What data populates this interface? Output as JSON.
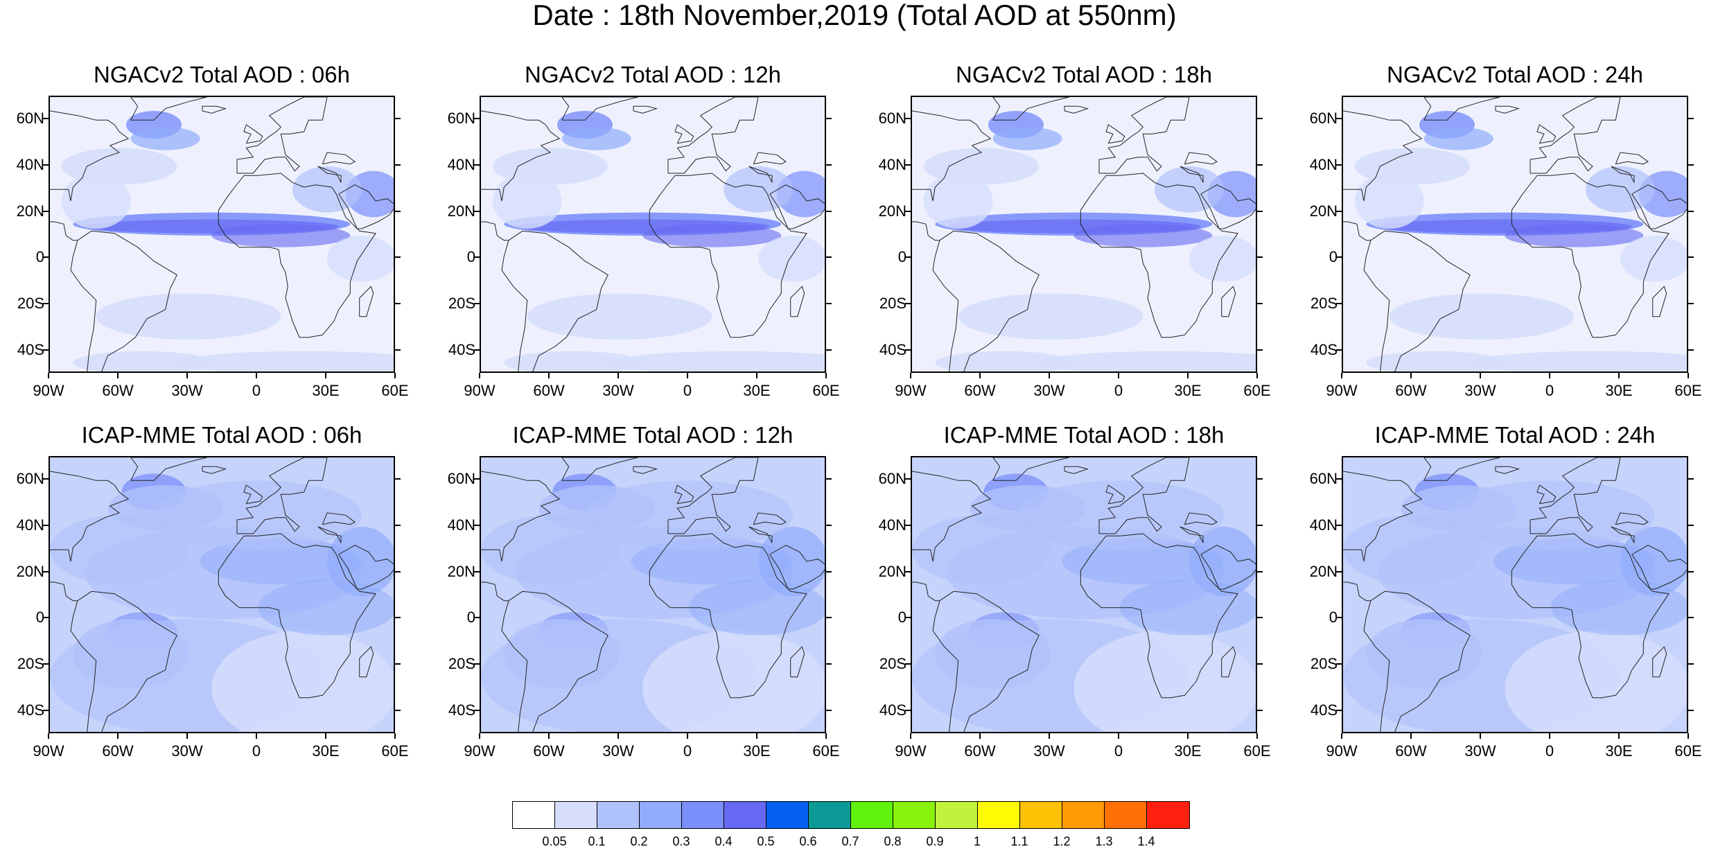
{
  "title": "Date : 18th November,2019 (Total AOD at 550nm)",
  "lat_labels": [
    "60N",
    "40N",
    "20N",
    "0",
    "20S",
    "40S"
  ],
  "lon_labels": [
    "90W",
    "60W",
    "30W",
    "0",
    "30E",
    "60E"
  ],
  "panels": [
    {
      "title": "NGACv2 Total AOD : 06h"
    },
    {
      "title": "NGACv2 Total AOD : 12h"
    },
    {
      "title": "NGACv2 Total AOD : 18h"
    },
    {
      "title": "NGACv2 Total AOD : 24h"
    },
    {
      "title": "ICAP-MME Total AOD : 06h"
    },
    {
      "title": "ICAP-MME Total AOD : 12h"
    },
    {
      "title": "ICAP-MME Total AOD : 18h"
    },
    {
      "title": "ICAP-MME Total AOD : 24h"
    }
  ],
  "colorbar": {
    "labels": [
      "0.05",
      "0.1",
      "0.2",
      "0.3",
      "0.4",
      "0.5",
      "0.6",
      "0.7",
      "0.8",
      "0.9",
      "1",
      "1.1",
      "1.2",
      "1.3",
      "1.4"
    ],
    "colors": [
      "#ffffff",
      "#d6defc",
      "#b0c2fb",
      "#90acfb",
      "#7b8ffa",
      "#6669f2",
      "#0560f2",
      "#0b9a96",
      "#60f20c",
      "#88f20c",
      "#c2f23b",
      "#fffb05",
      "#ffc105",
      "#ff9b05",
      "#ff7005",
      "#ff2010"
    ]
  }
}
